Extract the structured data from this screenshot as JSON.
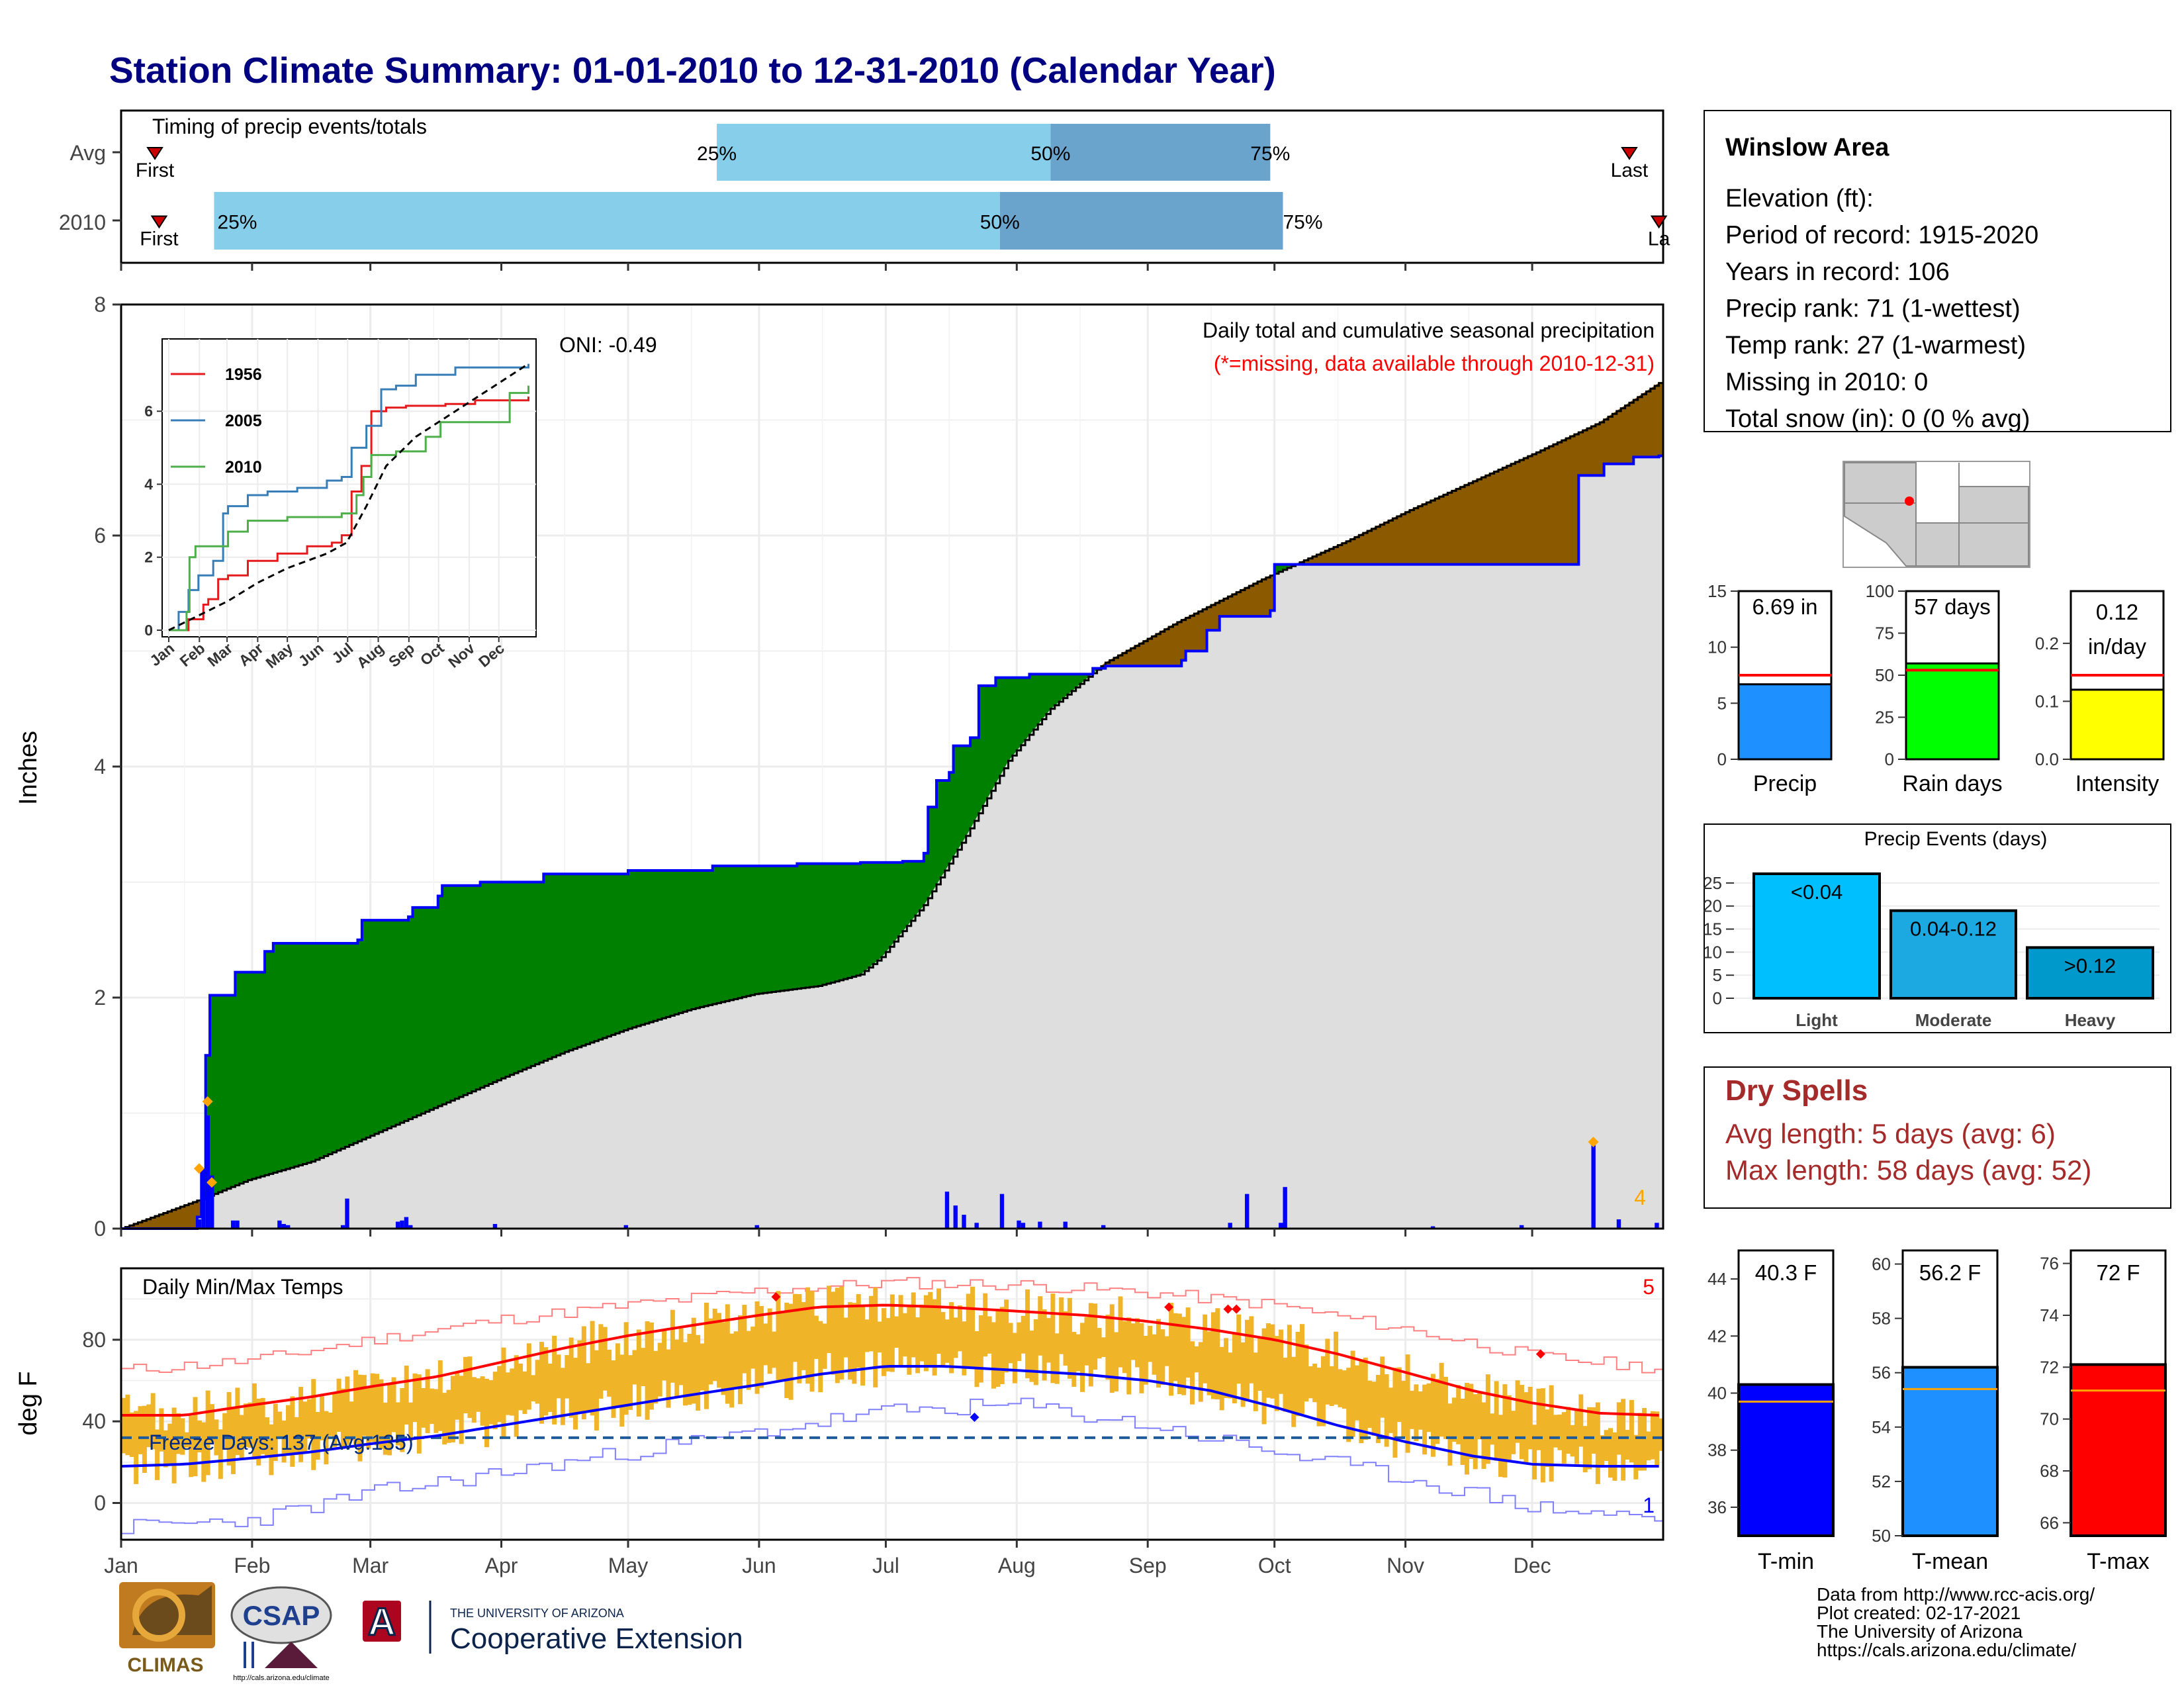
{
  "title": "Station Climate Summary: 01-01-2010 to 12-31-2010 (Calendar Year)",
  "colors": {
    "title": "#000080",
    "normal_fill": "#dedede",
    "surplus_green": "#008000",
    "deficit_brown": "#8b5a00",
    "obs_line": "#0000ff",
    "light_blue": "#87ceeb",
    "mid_blue": "#6aa3cc",
    "dry_red": "#a52a2a",
    "temp_bar": "#f0b428",
    "tmax_line": "#ff0000",
    "tmin_line": "#0000ff"
  },
  "timing": {
    "title": "Timing of precip events/totals",
    "rows": [
      {
        "label": "Avg",
        "first_day": 8,
        "p25_day": 141,
        "p50_day": 220,
        "p75_day": 272,
        "last_day": 357,
        "first_label": "First",
        "last_label": "Last",
        "p25_label": "25%",
        "p50_label": "50%",
        "p75_label": "75%"
      },
      {
        "label": "2010",
        "first_day": 9,
        "p25_day": 22,
        "p50_day": 208,
        "p75_day": 275,
        "last_day": 364,
        "first_label": "First",
        "last_label": "La",
        "p25_label": "25%",
        "p50_label": "50%",
        "p75_label": "75%"
      }
    ]
  },
  "main_chart": {
    "ylabel": "Inches",
    "annotation_title": "Daily total and cumulative seasonal precipitation",
    "annotation_missing": "(*=missing, data available through 2010-12-31)",
    "oni_label": "ONI: -0.49",
    "corner_count": "4",
    "ylim": [
      0,
      8
    ],
    "yticks": [
      "0",
      "2",
      "4",
      "6",
      "8"
    ],
    "xticks": [
      "Jan",
      "Feb",
      "Mar",
      "Apr",
      "May",
      "Jun",
      "Jul",
      "Aug",
      "Sep",
      "Oct",
      "Nov",
      "Dec"
    ],
    "normal_cumulative": [
      [
        0,
        0
      ],
      [
        20,
        0.27
      ],
      [
        30,
        0.42
      ],
      [
        45,
        0.58
      ],
      [
        60,
        0.82
      ],
      [
        75,
        1.06
      ],
      [
        90,
        1.3
      ],
      [
        105,
        1.53
      ],
      [
        120,
        1.73
      ],
      [
        135,
        1.9
      ],
      [
        150,
        2.03
      ],
      [
        165,
        2.1
      ],
      [
        175,
        2.2
      ],
      [
        180,
        2.35
      ],
      [
        190,
        2.8
      ],
      [
        200,
        3.4
      ],
      [
        210,
        4.05
      ],
      [
        220,
        4.5
      ],
      [
        233,
        4.9
      ],
      [
        250,
        5.25
      ],
      [
        270,
        5.62
      ],
      [
        290,
        5.95
      ],
      [
        305,
        6.22
      ],
      [
        320,
        6.47
      ],
      [
        335,
        6.72
      ],
      [
        350,
        6.98
      ],
      [
        364,
        7.32
      ]
    ],
    "observed_cumulative": [
      [
        0,
        0
      ],
      [
        18,
        0.1
      ],
      [
        19,
        0.5
      ],
      [
        20,
        1.5
      ],
      [
        21,
        2.02
      ],
      [
        27,
        2.22
      ],
      [
        34,
        2.4
      ],
      [
        36,
        2.47
      ],
      [
        56,
        2.5
      ],
      [
        57,
        2.67
      ],
      [
        68,
        2.7
      ],
      [
        69,
        2.78
      ],
      [
        75,
        2.88
      ],
      [
        76,
        2.97
      ],
      [
        85,
        3.0
      ],
      [
        100,
        3.07
      ],
      [
        120,
        3.1
      ],
      [
        140,
        3.14
      ],
      [
        160,
        3.16
      ],
      [
        175,
        3.17
      ],
      [
        185,
        3.18
      ],
      [
        190,
        3.25
      ],
      [
        191,
        3.65
      ],
      [
        193,
        3.88
      ],
      [
        196,
        3.95
      ],
      [
        197,
        4.18
      ],
      [
        201,
        4.25
      ],
      [
        203,
        4.7
      ],
      [
        207,
        4.77
      ],
      [
        215,
        4.8
      ],
      [
        230,
        4.85
      ],
      [
        233,
        4.87
      ],
      [
        251,
        4.92
      ],
      [
        252,
        5.0
      ],
      [
        257,
        5.18
      ],
      [
        260,
        5.3
      ],
      [
        272,
        5.35
      ],
      [
        273,
        5.75
      ],
      [
        340,
        5.75
      ],
      [
        345,
        6.52
      ],
      [
        351,
        6.62
      ],
      [
        358,
        6.68
      ],
      [
        364,
        6.69
      ]
    ],
    "daily_bars": [
      [
        18,
        0.08
      ],
      [
        19,
        0.52
      ],
      [
        20,
        0.98
      ],
      [
        21,
        0.46
      ],
      [
        26,
        0.07
      ],
      [
        27,
        0.07
      ],
      [
        37,
        0.07
      ],
      [
        38,
        0.04
      ],
      [
        39,
        0.03
      ],
      [
        52,
        0.03
      ],
      [
        53,
        0.26
      ],
      [
        65,
        0.06
      ],
      [
        66,
        0.07
      ],
      [
        67,
        0.1
      ],
      [
        68,
        0.03
      ],
      [
        88,
        0.04
      ],
      [
        119,
        0.03
      ],
      [
        150,
        0.03
      ],
      [
        195,
        0.32
      ],
      [
        197,
        0.2
      ],
      [
        199,
        0.12
      ],
      [
        202,
        0.05
      ],
      [
        208,
        0.3
      ],
      [
        212,
        0.07
      ],
      [
        213,
        0.05
      ],
      [
        217,
        0.06
      ],
      [
        223,
        0.06
      ],
      [
        232,
        0.03
      ],
      [
        262,
        0.05
      ],
      [
        266,
        0.3
      ],
      [
        274,
        0.05
      ],
      [
        275,
        0.36
      ],
      [
        310,
        0.02
      ],
      [
        331,
        0.03
      ],
      [
        348,
        0.75
      ],
      [
        354,
        0.08
      ],
      [
        363,
        0.05
      ]
    ],
    "markers": [
      [
        18,
        0.52
      ],
      [
        20,
        1.1
      ],
      [
        21,
        0.4
      ],
      [
        348,
        0.75
      ]
    ]
  },
  "inset": {
    "yticks": [
      "0",
      "2",
      "4",
      "6"
    ],
    "xticks": [
      "Jan",
      "Feb",
      "Mar",
      "Apr",
      "May",
      "Jun",
      "Jul",
      "Aug",
      "Sep",
      "Oct",
      "Nov",
      "Dec"
    ],
    "legend": [
      {
        "name": "1956",
        "color": "#e41a1c"
      },
      {
        "name": "2005",
        "color": "#377eb8"
      },
      {
        "name": "2010",
        "color": "#4daf4a"
      }
    ],
    "ylim": [
      0,
      7.8
    ],
    "series_1956": [
      [
        0,
        0
      ],
      [
        20,
        0.3
      ],
      [
        35,
        0.7
      ],
      [
        40,
        0.85
      ],
      [
        50,
        1.4
      ],
      [
        60,
        1.5
      ],
      [
        80,
        1.9
      ],
      [
        110,
        2.1
      ],
      [
        140,
        2.3
      ],
      [
        165,
        2.4
      ],
      [
        175,
        2.6
      ],
      [
        185,
        3.8
      ],
      [
        195,
        4.5
      ],
      [
        205,
        6.0
      ],
      [
        220,
        6.1
      ],
      [
        240,
        6.15
      ],
      [
        280,
        6.2
      ],
      [
        310,
        6.3
      ],
      [
        364,
        6.4
      ]
    ],
    "series_2005": [
      [
        0,
        0
      ],
      [
        10,
        0.5
      ],
      [
        20,
        1.1
      ],
      [
        30,
        1.5
      ],
      [
        45,
        1.9
      ],
      [
        55,
        3.2
      ],
      [
        60,
        3.4
      ],
      [
        80,
        3.7
      ],
      [
        100,
        3.8
      ],
      [
        130,
        3.9
      ],
      [
        160,
        4.1
      ],
      [
        175,
        4.2
      ],
      [
        185,
        5.0
      ],
      [
        200,
        5.6
      ],
      [
        215,
        6.6
      ],
      [
        230,
        6.7
      ],
      [
        250,
        7.0
      ],
      [
        290,
        7.2
      ],
      [
        364,
        7.3
      ]
    ],
    "series_2010": [
      [
        0,
        0
      ],
      [
        18,
        0.5
      ],
      [
        21,
        2.0
      ],
      [
        27,
        2.3
      ],
      [
        60,
        2.7
      ],
      [
        80,
        3.0
      ],
      [
        120,
        3.1
      ],
      [
        175,
        3.2
      ],
      [
        190,
        3.7
      ],
      [
        197,
        4.2
      ],
      [
        205,
        4.8
      ],
      [
        230,
        4.9
      ],
      [
        260,
        5.3
      ],
      [
        275,
        5.7
      ],
      [
        345,
        6.5
      ],
      [
        364,
        6.7
      ]
    ],
    "series_avg": [
      [
        0,
        0
      ],
      [
        30,
        0.4
      ],
      [
        60,
        0.8
      ],
      [
        90,
        1.3
      ],
      [
        120,
        1.7
      ],
      [
        160,
        2.1
      ],
      [
        180,
        2.4
      ],
      [
        200,
        3.4
      ],
      [
        220,
        4.5
      ],
      [
        250,
        5.3
      ],
      [
        290,
        6.0
      ],
      [
        330,
        6.7
      ],
      [
        364,
        7.3
      ]
    ]
  },
  "temp_chart": {
    "ylabel": "deg F",
    "title": "Daily Min/Max Temps",
    "freeze_label": "Freeze Days: 137 (Avg:135)",
    "count_top": "5",
    "count_bottom": "1",
    "ylim": [
      -18,
      115
    ],
    "yticks": [
      "0",
      "40",
      "80"
    ],
    "freeze_line": 32,
    "normal_tmax": [
      [
        0,
        43
      ],
      [
        15,
        43
      ],
      [
        31,
        48
      ],
      [
        45,
        52
      ],
      [
        59,
        57
      ],
      [
        75,
        62
      ],
      [
        90,
        69
      ],
      [
        105,
        76
      ],
      [
        120,
        82
      ],
      [
        135,
        87
      ],
      [
        151,
        92
      ],
      [
        165,
        96
      ],
      [
        181,
        97
      ],
      [
        195,
        96
      ],
      [
        212,
        94
      ],
      [
        228,
        92
      ],
      [
        243,
        89
      ],
      [
        258,
        85
      ],
      [
        273,
        80
      ],
      [
        288,
        73
      ],
      [
        304,
        64
      ],
      [
        320,
        55
      ],
      [
        334,
        49
      ],
      [
        350,
        44
      ],
      [
        364,
        43
      ]
    ],
    "normal_tmin": [
      [
        0,
        18
      ],
      [
        15,
        19
      ],
      [
        31,
        22
      ],
      [
        45,
        25
      ],
      [
        59,
        29
      ],
      [
        75,
        33
      ],
      [
        90,
        38
      ],
      [
        105,
        43
      ],
      [
        120,
        48
      ],
      [
        135,
        53
      ],
      [
        151,
        58
      ],
      [
        165,
        63
      ],
      [
        181,
        67
      ],
      [
        195,
        67
      ],
      [
        212,
        65
      ],
      [
        228,
        63
      ],
      [
        243,
        60
      ],
      [
        258,
        55
      ],
      [
        273,
        47
      ],
      [
        288,
        38
      ],
      [
        304,
        30
      ],
      [
        320,
        23
      ],
      [
        334,
        19
      ],
      [
        350,
        18
      ],
      [
        364,
        18
      ]
    ],
    "record_high": [
      [
        0,
        65
      ],
      [
        31,
        70
      ],
      [
        59,
        80
      ],
      [
        90,
        90
      ],
      [
        120,
        97
      ],
      [
        151,
        104
      ],
      [
        181,
        108
      ],
      [
        212,
        107
      ],
      [
        243,
        103
      ],
      [
        273,
        97
      ],
      [
        304,
        85
      ],
      [
        334,
        72
      ],
      [
        364,
        66
      ]
    ],
    "record_low": [
      [
        0,
        -12
      ],
      [
        31,
        -8
      ],
      [
        59,
        5
      ],
      [
        90,
        15
      ],
      [
        120,
        25
      ],
      [
        151,
        35
      ],
      [
        181,
        45
      ],
      [
        212,
        48
      ],
      [
        243,
        38
      ],
      [
        273,
        25
      ],
      [
        304,
        12
      ],
      [
        334,
        -2
      ],
      [
        364,
        -8
      ]
    ]
  },
  "xticks": [
    "Jan",
    "Feb",
    "Mar",
    "Apr",
    "May",
    "Jun",
    "Jul",
    "Aug",
    "Sep",
    "Oct",
    "Nov",
    "Dec"
  ],
  "station": {
    "name": "Winslow Area",
    "lines": [
      "Elevation (ft):",
      "Period of record: 1915-2020",
      "Years in record: 106",
      "Precip rank: 71 (1-wettest)",
      "Temp rank: 27 (1-warmest)",
      "Missing in 2010: 0",
      "Total snow (in): 0 (0 % avg)"
    ]
  },
  "mini_bars": [
    {
      "label": "Precip",
      "value_label": "6.69 in",
      "value": 6.69,
      "avg": 7.5,
      "ymax": 15,
      "yticks": [
        "0",
        "5",
        "10",
        "15"
      ],
      "ytick_vals": [
        0,
        5,
        10,
        15
      ],
      "color": "#1e90ff",
      "avg_color": "#ff0000"
    },
    {
      "label": "Rain days",
      "value_label": "57 days",
      "value": 57,
      "avg": 53,
      "ymax": 100,
      "yticks": [
        "0",
        "25",
        "50",
        "75",
        "100"
      ],
      "ytick_vals": [
        0,
        25,
        50,
        75,
        100
      ],
      "color": "#00ff00",
      "avg_color": "#ff0000"
    },
    {
      "label": "Intensity",
      "value_label": "0.12",
      "value_label2": "in/day",
      "value": 0.12,
      "avg": 0.145,
      "ymax": 0.29,
      "yticks": [
        "0.0",
        "0.1",
        "0.2"
      ],
      "ytick_vals": [
        0,
        0.1,
        0.2
      ],
      "color": "#ffff00",
      "avg_color": "#ff0000"
    }
  ],
  "precip_events": {
    "title": "Precip Events (days)",
    "yticks": [
      "0",
      "5",
      "10",
      "15",
      "20",
      "25"
    ],
    "ytick_vals": [
      0,
      5,
      10,
      15,
      20,
      25
    ],
    "ymax": 28,
    "bars": [
      {
        "category": "Light",
        "label": "<0.04",
        "value": 27,
        "color": "#00bfff"
      },
      {
        "category": "Moderate",
        "label": "0.04-0.12",
        "value": 19,
        "color": "#1ca8e0"
      },
      {
        "category": "Heavy",
        "label": ">0.12",
        "value": 11,
        "color": "#0099cc"
      }
    ]
  },
  "dry_spells": {
    "title": "Dry Spells",
    "avg_length": "Avg length: 5 days (avg: 6)",
    "max_length": "Max length: 58 days (avg: 52)"
  },
  "temp_bars": [
    {
      "label": "T-min",
      "value_label": "40.3 F",
      "value": 40.3,
      "avg": 39.7,
      "ymin": 35,
      "ymax": 45,
      "yticks": [
        "36",
        "38",
        "40",
        "42",
        "44"
      ],
      "ytick_vals": [
        36,
        38,
        40,
        42,
        44
      ],
      "color": "#0000ff"
    },
    {
      "label": "T-mean",
      "value_label": "56.2 F",
      "value": 56.2,
      "avg": 55.4,
      "ymin": 50,
      "ymax": 60.5,
      "yticks": [
        "50",
        "52",
        "54",
        "56",
        "58",
        "60"
      ],
      "ytick_vals": [
        50,
        52,
        54,
        56,
        58,
        60
      ],
      "color": "#1e90ff"
    },
    {
      "label": "T-max",
      "value_label": "72 F",
      "value": 72.1,
      "avg": 71.1,
      "ymin": 65.5,
      "ymax": 76.5,
      "yticks": [
        "66",
        "68",
        "70",
        "72",
        "74",
        "76"
      ],
      "ytick_vals": [
        66,
        68,
        70,
        72,
        74,
        76
      ],
      "color": "#ff0000"
    }
  ],
  "credits": [
    "Data from http://www.rcc-acis.org/",
    "Plot created: 02-17-2021",
    "The University of Arizona",
    "https://cals.arizona.edu/climate/"
  ],
  "logos": {
    "climas": "CLIMAS",
    "csap": "CSAP",
    "csap_url": "http://cals.arizona.edu/climate",
    "ua_small": "THE UNIVERSITY OF ARIZONA",
    "ua_ext": "Cooperative Extension",
    "ua_letter": "A"
  }
}
